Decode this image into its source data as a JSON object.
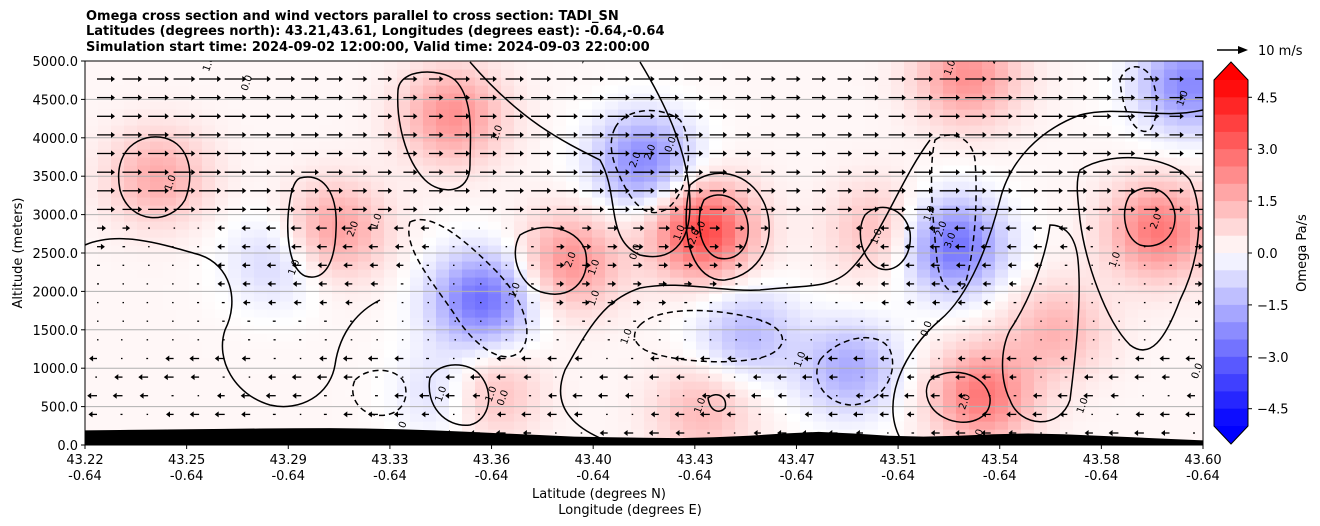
{
  "chart_data": {
    "type": "heatmap",
    "title_lines": [
      "Omega cross section and wind vectors parallel to cross section: TADI_SN",
      "Latitudes (degrees north): 43.21,43.61, Longitudes (degrees east): -0.64,-0.64",
      "Simulation start time: 2024-09-02 12:00:00, Valid time: 2024-09-03 22:00:00"
    ],
    "ylabel": "Altitude (meters)",
    "xlabel_lines": [
      "Latitude (degrees N)",
      "Longitude (degrees E)"
    ],
    "x_ticks": [
      {
        "lat": "43.22",
        "lon": "-0.64"
      },
      {
        "lat": "43.25",
        "lon": "-0.64"
      },
      {
        "lat": "43.29",
        "lon": "-0.64"
      },
      {
        "lat": "43.33",
        "lon": "-0.64"
      },
      {
        "lat": "43.36",
        "lon": "-0.64"
      },
      {
        "lat": "43.40",
        "lon": "-0.64"
      },
      {
        "lat": "43.43",
        "lon": "-0.64"
      },
      {
        "lat": "43.47",
        "lon": "-0.64"
      },
      {
        "lat": "43.51",
        "lon": "-0.64"
      },
      {
        "lat": "43.54",
        "lon": "-0.64"
      },
      {
        "lat": "43.58",
        "lon": "-0.64"
      },
      {
        "lat": "43.60",
        "lon": "-0.64"
      }
    ],
    "xlim": [
      43.22,
      43.6
    ],
    "ylim": [
      0,
      5000
    ],
    "y_ticks": [
      "0.0",
      "500.0",
      "1000.0",
      "1500.0",
      "2000.0",
      "2500.0",
      "3000.0",
      "3500.0",
      "4000.0",
      "4500.0",
      "5000.0"
    ],
    "y_grid": true,
    "colorbar": {
      "label": "Omega Pa/s",
      "ticks": [
        "4.5",
        "3.0",
        "1.5",
        "0.0",
        "−1.5",
        "−3.0",
        "−4.5"
      ],
      "range": [
        -5,
        5
      ],
      "colors": {
        "positive": "#ff0000",
        "negative": "#0000ff",
        "neutral": "#ffffff"
      }
    },
    "quiver_key": "10 m/s",
    "omega_cells": [
      {
        "lat": 43.245,
        "z": 3500,
        "omega": 1.5
      },
      {
        "lat": 43.305,
        "z": 2800,
        "omega": 1.8
      },
      {
        "lat": 43.285,
        "z": 2400,
        "omega": -1.0
      },
      {
        "lat": 43.345,
        "z": 4300,
        "omega": 2.0
      },
      {
        "lat": 43.355,
        "z": 1900,
        "omega": -3.0
      },
      {
        "lat": 43.345,
        "z": 700,
        "omega": -1.5
      },
      {
        "lat": 43.355,
        "z": 700,
        "omega": 1.8
      },
      {
        "lat": 43.385,
        "z": 2400,
        "omega": 2.0
      },
      {
        "lat": 43.41,
        "z": 3700,
        "omega": -2.5
      },
      {
        "lat": 43.43,
        "z": 2800,
        "omega": 3.5
      },
      {
        "lat": 43.43,
        "z": 450,
        "omega": 1.2
      },
      {
        "lat": 43.445,
        "z": 1450,
        "omega": -1.5
      },
      {
        "lat": 43.48,
        "z": 1000,
        "omega": -1.8
      },
      {
        "lat": 43.49,
        "z": 2800,
        "omega": 1.2
      },
      {
        "lat": 43.515,
        "z": 2600,
        "omega": -3.0
      },
      {
        "lat": 43.525,
        "z": 650,
        "omega": 2.5
      },
      {
        "lat": 43.55,
        "z": 1500,
        "omega": 1.3
      },
      {
        "lat": 43.585,
        "z": 2800,
        "omega": 2.5
      },
      {
        "lat": 43.52,
        "z": 4800,
        "omega": 2.0
      },
      {
        "lat": 43.595,
        "z": 4700,
        "omega": -2.5
      }
    ],
    "contour_labels": [
      {
        "text": "1.0",
        "lat": 43.25,
        "z": 3400
      },
      {
        "text": "1.0",
        "lat": 43.292,
        "z": 2300
      },
      {
        "text": "2.0",
        "lat": 43.312,
        "z": 2800
      },
      {
        "text": "1.0",
        "lat": 43.32,
        "z": 2900
      },
      {
        "text": "0.0",
        "lat": 43.276,
        "z": 4700
      },
      {
        "text": "1.0",
        "lat": 43.263,
        "z": 4950
      },
      {
        "text": "1.0",
        "lat": 43.361,
        "z": 4050
      },
      {
        "text": "1.0",
        "lat": 43.367,
        "z": 2000
      },
      {
        "text": "2.0",
        "lat": 43.386,
        "z": 2400
      },
      {
        "text": "1.0",
        "lat": 43.394,
        "z": 2300
      },
      {
        "text": "1.0",
        "lat": 43.394,
        "z": 1900
      },
      {
        "text": "1.0",
        "lat": 43.39,
        "z": 5050
      },
      {
        "text": "1.0",
        "lat": 43.342,
        "z": 650
      },
      {
        "text": "1.0",
        "lat": 43.359,
        "z": 650
      },
      {
        "text": "0.0",
        "lat": 43.363,
        "z": 600
      },
      {
        "text": "0",
        "lat": 43.329,
        "z": 250
      },
      {
        "text": "2.0",
        "lat": 43.408,
        "z": 3700
      },
      {
        "text": "2.0",
        "lat": 43.413,
        "z": 3800
      },
      {
        "text": "0.0",
        "lat": 43.42,
        "z": 3900
      },
      {
        "text": "0.0",
        "lat": 43.408,
        "z": 2500
      },
      {
        "text": "1.0",
        "lat": 43.423,
        "z": 2750
      },
      {
        "text": "2.0",
        "lat": 43.428,
        "z": 2700
      },
      {
        "text": "3.0",
        "lat": 43.43,
        "z": 2800
      },
      {
        "text": "1.0",
        "lat": 43.405,
        "z": 1400
      },
      {
        "text": "1.0",
        "lat": 43.43,
        "z": 500
      },
      {
        "text": "1.0",
        "lat": 43.464,
        "z": 1100
      },
      {
        "text": "1.0",
        "lat": 43.49,
        "z": 2700
      },
      {
        "text": "1.0",
        "lat": 43.508,
        "z": 3000
      },
      {
        "text": "2.0",
        "lat": 43.512,
        "z": 2800
      },
      {
        "text": "3.0",
        "lat": 43.515,
        "z": 2650
      },
      {
        "text": "0.0",
        "lat": 43.507,
        "z": 1500
      },
      {
        "text": "2.0",
        "lat": 43.52,
        "z": 550
      },
      {
        "text": "1.0",
        "lat": 43.515,
        "z": 4900
      },
      {
        "text": "2.0",
        "lat": 43.53,
        "z": 5050
      },
      {
        "text": "0",
        "lat": 43.525,
        "z": 150
      },
      {
        "text": "1.0",
        "lat": 43.56,
        "z": 500
      },
      {
        "text": "1.0",
        "lat": 43.571,
        "z": 2400
      },
      {
        "text": "2.0",
        "lat": 43.585,
        "z": 2900
      },
      {
        "text": "1.0",
        "lat": 43.594,
        "z": 4500
      },
      {
        "text": "0.0",
        "lat": 43.599,
        "z": 950
      }
    ],
    "terrain_height_m": [
      190,
      195,
      200,
      205,
      210,
      215,
      218,
      220,
      215,
      205,
      190,
      170,
      150,
      130,
      110,
      100,
      95,
      90,
      100,
      120,
      150,
      170,
      150,
      120,
      110,
      120,
      140,
      150,
      140,
      120,
      100,
      80,
      60
    ]
  }
}
